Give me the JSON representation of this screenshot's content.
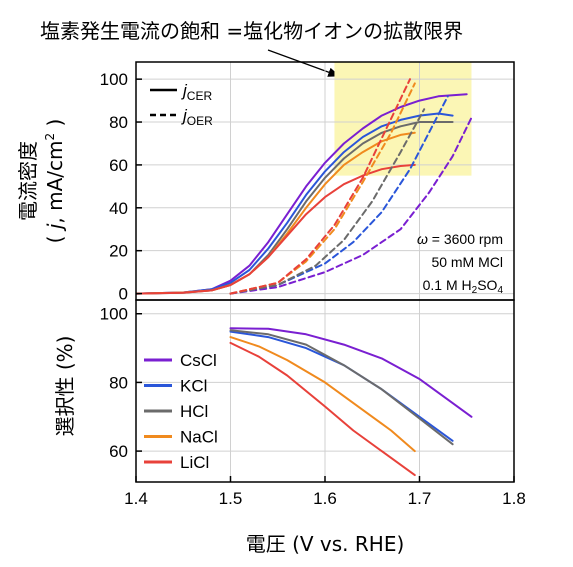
{
  "annotation_title": "塩素発生電流の飽和 =塩化物イオンの拡散限界",
  "colors": {
    "CsCl": "#7a1fd1",
    "KCl": "#2a56d9",
    "HCl": "#6b6b6b",
    "NaCl": "#f08a1e",
    "LiCl": "#e8413a",
    "highlight": "#fbf6b5"
  },
  "chart_data": [
    {
      "type": "line",
      "ylabel_main": "電流密度",
      "ylabel_unit_open": "( ",
      "ylabel_unit_j": "j",
      "ylabel_unit_mid": ", mA/cm",
      "ylabel_unit_sup": "2",
      "ylabel_unit_close": " )",
      "xlim": [
        1.4,
        1.8
      ],
      "ylim": [
        -3,
        108
      ],
      "yticks": [
        "0",
        "20",
        "40",
        "60",
        "80",
        "100"
      ],
      "legend": {
        "placement": "top-left",
        "cer_j": "j",
        "cer_sub": "CER",
        "oer_j": "j",
        "oer_sub": "OER"
      },
      "conditions": {
        "omega_symbol": "ω",
        "omega_rest": " = 3600 rpm",
        "conc": "50 mM MCl",
        "acid_main": "0.1 M H",
        "acid_sub1": "2",
        "acid_mid": "SO",
        "acid_sub2": "4"
      },
      "highlight_region": {
        "x": [
          1.61,
          1.755
        ],
        "y": [
          55,
          110
        ]
      },
      "series": [
        {
          "name": "CsCl",
          "kind": "CER",
          "x": [
            1.4,
            1.45,
            1.48,
            1.5,
            1.52,
            1.54,
            1.56,
            1.58,
            1.6,
            1.62,
            1.64,
            1.66,
            1.68,
            1.7,
            1.72,
            1.75
          ],
          "y": [
            0,
            0.5,
            2,
            6,
            13,
            24,
            37,
            50,
            61,
            70,
            77,
            83,
            87,
            90,
            92,
            93
          ]
        },
        {
          "name": "KCl",
          "kind": "CER",
          "x": [
            1.4,
            1.45,
            1.48,
            1.5,
            1.52,
            1.54,
            1.56,
            1.58,
            1.6,
            1.62,
            1.64,
            1.66,
            1.68,
            1.7,
            1.72,
            1.735
          ],
          "y": [
            0,
            0.5,
            2,
            5,
            11,
            21,
            33,
            46,
            57,
            66,
            73,
            78,
            81,
            83,
            84,
            83
          ]
        },
        {
          "name": "HCl",
          "kind": "CER",
          "x": [
            1.4,
            1.45,
            1.48,
            1.5,
            1.52,
            1.54,
            1.56,
            1.58,
            1.6,
            1.62,
            1.64,
            1.66,
            1.68,
            1.7,
            1.72,
            1.735
          ],
          "y": [
            0,
            0.4,
            1.5,
            4,
            9,
            18,
            30,
            43,
            54,
            63,
            70,
            75,
            78,
            80,
            80,
            80
          ]
        },
        {
          "name": "NaCl",
          "kind": "CER",
          "x": [
            1.4,
            1.45,
            1.48,
            1.5,
            1.52,
            1.54,
            1.56,
            1.58,
            1.6,
            1.62,
            1.64,
            1.66,
            1.68,
            1.695
          ],
          "y": [
            0,
            0.5,
            1.5,
            4,
            9,
            17,
            28,
            40,
            51,
            60,
            66,
            71,
            74,
            75
          ]
        },
        {
          "name": "LiCl",
          "kind": "CER",
          "x": [
            1.4,
            1.45,
            1.48,
            1.5,
            1.52,
            1.54,
            1.56,
            1.58,
            1.6,
            1.62,
            1.64,
            1.66,
            1.68,
            1.695
          ],
          "y": [
            0,
            0.4,
            1.5,
            4,
            9,
            17,
            27,
            37,
            45,
            51,
            55,
            58,
            59.5,
            60
          ]
        },
        {
          "name": "CsCl",
          "kind": "OER",
          "x": [
            1.5,
            1.55,
            1.6,
            1.64,
            1.68,
            1.71,
            1.735,
            1.755
          ],
          "y": [
            0,
            3,
            10,
            18,
            30,
            47,
            64,
            82
          ]
        },
        {
          "name": "KCl",
          "kind": "OER",
          "x": [
            1.5,
            1.55,
            1.6,
            1.63,
            1.66,
            1.69,
            1.71,
            1.73
          ],
          "y": [
            0,
            4,
            14,
            24,
            38,
            58,
            75,
            92
          ]
        },
        {
          "name": "HCl",
          "kind": "OER",
          "x": [
            1.5,
            1.55,
            1.59,
            1.62,
            1.65,
            1.68,
            1.705
          ],
          "y": [
            0,
            4,
            13,
            25,
            43,
            66,
            86
          ]
        },
        {
          "name": "NaCl",
          "kind": "OER",
          "x": [
            1.5,
            1.55,
            1.58,
            1.61,
            1.64,
            1.67,
            1.695
          ],
          "y": [
            0,
            5,
            15,
            30,
            52,
            75,
            98
          ]
        },
        {
          "name": "LiCl",
          "kind": "OER",
          "x": [
            1.5,
            1.55,
            1.58,
            1.61,
            1.64,
            1.665,
            1.69
          ],
          "y": [
            0,
            5,
            16,
            32,
            54,
            77,
            100
          ]
        }
      ]
    },
    {
      "type": "line",
      "xlabel": "電圧 (V vs. RHE)",
      "ylabel": "選択性 (%)",
      "xlim": [
        1.4,
        1.8
      ],
      "ylim": [
        51,
        104
      ],
      "xticks": [
        "1.4",
        "1.5",
        "1.6",
        "1.7",
        "1.8"
      ],
      "yticks": [
        "60",
        "80",
        "100"
      ],
      "legend_placement": "left",
      "series": [
        {
          "name": "CsCl",
          "x": [
            1.5,
            1.54,
            1.58,
            1.62,
            1.66,
            1.7,
            1.73,
            1.755
          ],
          "y": [
            95.8,
            95.6,
            94,
            91,
            87,
            81,
            75,
            70
          ]
        },
        {
          "name": "KCl",
          "x": [
            1.5,
            1.54,
            1.58,
            1.62,
            1.66,
            1.7,
            1.735
          ],
          "y": [
            94.8,
            93.2,
            90,
            85,
            78,
            70,
            63
          ]
        },
        {
          "name": "HCl",
          "x": [
            1.5,
            1.54,
            1.58,
            1.62,
            1.66,
            1.7,
            1.735
          ],
          "y": [
            95.2,
            94,
            91,
            85,
            78,
            69.5,
            62
          ]
        },
        {
          "name": "NaCl",
          "x": [
            1.5,
            1.53,
            1.56,
            1.6,
            1.64,
            1.67,
            1.695
          ],
          "y": [
            93.2,
            90.5,
            86.5,
            80,
            72,
            66,
            60
          ]
        },
        {
          "name": "LiCl",
          "x": [
            1.5,
            1.53,
            1.56,
            1.6,
            1.63,
            1.66,
            1.695
          ],
          "y": [
            91.5,
            87.5,
            82,
            73,
            66,
            60,
            53
          ]
        }
      ]
    }
  ]
}
